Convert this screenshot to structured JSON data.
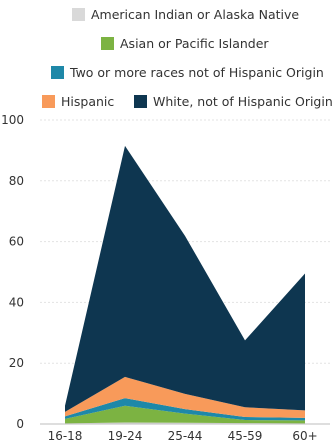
{
  "chart_data": {
    "type": "area",
    "stacked": true,
    "categories": [
      "16-18",
      "19-24",
      "25-44",
      "45-59",
      "60+"
    ],
    "series": [
      {
        "name": "American Indian or Alaska Native",
        "values": [
          0.2,
          0.5,
          0.4,
          0.3,
          0.2
        ],
        "color": "#d9d9d9"
      },
      {
        "name": "Asian or Pacific Islander",
        "values": [
          1.5,
          5.5,
          3.0,
          1.0,
          1.0
        ],
        "color": "#7cb342"
      },
      {
        "name": "Two or more races not of Hispanic Origin",
        "values": [
          0.8,
          2.5,
          1.5,
          1.0,
          0.8
        ],
        "color": "#1e88a8"
      },
      {
        "name": "Hispanic",
        "values": [
          1.5,
          7.0,
          5.0,
          3.2,
          2.5
        ],
        "color": "#f89a5a"
      },
      {
        "name": "White, not of Hispanic Origin",
        "values": [
          2.0,
          76.0,
          52.0,
          22.0,
          45.0
        ],
        "color": "#0e3650"
      }
    ],
    "ylim": [
      0,
      100
    ],
    "yticks": [
      0,
      20,
      40,
      60,
      80,
      100
    ],
    "ytick_labels": [
      "0",
      "20",
      "40",
      "60",
      "80",
      "100"
    ],
    "xlabel": "",
    "ylabel": "",
    "title": "",
    "grid": true,
    "legend_position": "top"
  }
}
